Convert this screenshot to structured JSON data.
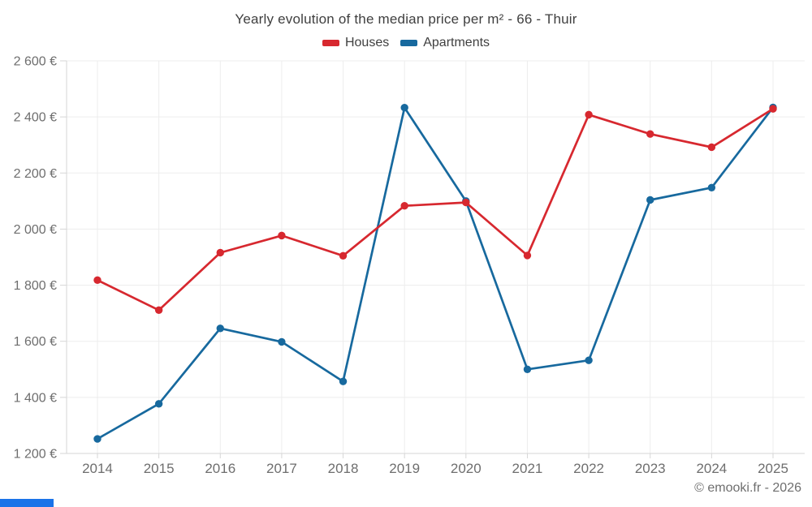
{
  "chart_data": {
    "type": "line",
    "title": "Yearly evolution of the median price per m² - 66 - Thuir",
    "categories": [
      "2014",
      "2015",
      "2016",
      "2017",
      "2018",
      "2019",
      "2020",
      "2021",
      "2022",
      "2023",
      "2024",
      "2025"
    ],
    "series": [
      {
        "name": "Houses",
        "color": "#d7282f",
        "values": [
          1818,
          1711,
          1916,
          1977,
          1905,
          2083,
          2095,
          1906,
          2408,
          2339,
          2292,
          2429
        ]
      },
      {
        "name": "Apartments",
        "color": "#17699e",
        "values": [
          1252,
          1377,
          1646,
          1598,
          1457,
          2433,
          2100,
          1500,
          1532,
          2104,
          2148,
          2434
        ]
      }
    ],
    "ylim": [
      1200,
      2600
    ],
    "yticks": [
      {
        "value": 1200,
        "label": "1 200 €"
      },
      {
        "value": 1400,
        "label": "1 400 €"
      },
      {
        "value": 1600,
        "label": "1 600 €"
      },
      {
        "value": 1800,
        "label": "1 800 €"
      },
      {
        "value": 2000,
        "label": "2 000 €"
      },
      {
        "value": 2200,
        "label": "2 200 €"
      },
      {
        "value": 2400,
        "label": "2 400 €"
      },
      {
        "value": 2600,
        "label": "2 600 €"
      }
    ],
    "grid": true,
    "legend_position": "top"
  },
  "footer": {
    "credit": "© emooki.fr - 2026"
  },
  "ui_colors": {
    "grid": "#ededed",
    "axis": "#d6d6d6",
    "tick_text": "#6e6e6e",
    "title_text": "#3f3f3f",
    "bottom_bar": "#1a73e8"
  }
}
